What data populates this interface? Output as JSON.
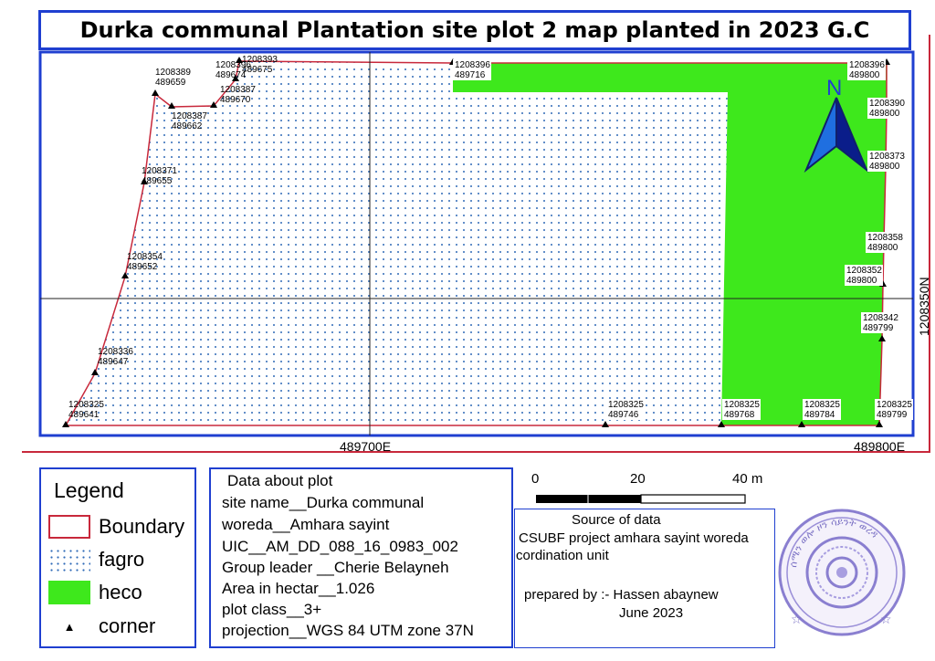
{
  "title": "Durka communal Plantation site plot 2 map planted in 2023 G.C",
  "map": {
    "colors": {
      "frame": "#1f3fd0",
      "boundary": "#c8283b",
      "fagro_dots": "#2f6ab7",
      "heco": "#3ee81c"
    },
    "north_label": "N",
    "grid_labels": {
      "x_left": "489700E",
      "x_right": "489800E",
      "y_right": "1208350N"
    },
    "corner_labels": [
      {
        "n": "1208325",
        "e": "489641"
      },
      {
        "n": "1208336",
        "e": "489647"
      },
      {
        "n": "1208354",
        "e": "489652"
      },
      {
        "n": "1208371",
        "e": "489655"
      },
      {
        "n": "1208389",
        "e": "489659"
      },
      {
        "n": "1208387",
        "e": "489662"
      },
      {
        "n": "1208396",
        "e": "489674"
      },
      {
        "n": "1208393",
        "e": "489675"
      },
      {
        "n": "1208387",
        "e": "489670"
      },
      {
        "n": "1208396",
        "e": "489716"
      },
      {
        "n": "1208396",
        "e": "489800"
      },
      {
        "n": "1208390",
        "e": "489800"
      },
      {
        "n": "1208373",
        "e": "489800"
      },
      {
        "n": "1208358",
        "e": "489800"
      },
      {
        "n": "1208352",
        "e": "489800"
      },
      {
        "n": "1208342",
        "e": "489799"
      },
      {
        "n": "1208325",
        "e": "489799"
      },
      {
        "n": "1208325",
        "e": "489784"
      },
      {
        "n": "1208325",
        "e": "489768"
      },
      {
        "n": "1208325",
        "e": "489746"
      }
    ]
  },
  "legend": {
    "title": "Legend",
    "items": [
      {
        "label": "Boundary",
        "icon": "boundary-swatch"
      },
      {
        "label": "fagro",
        "icon": "dotted-swatch"
      },
      {
        "label": "heco",
        "icon": "green-swatch"
      },
      {
        "label": "corner",
        "icon": "triangle-marker-icon"
      }
    ]
  },
  "plot_data": {
    "heading": "Data about plot",
    "lines": [
      "site name__Durka communal",
      "woreda__Amhara sayint",
      "UIC__AM_DD_088_16_0983_002",
      "Group leader __Cherie Belayneh",
      "Area in hectar__1.026",
      "plot class__3+",
      "projection__WGS 84 UTM zone 37N"
    ]
  },
  "scale_bar": {
    "labels": [
      "0",
      "20",
      "40 m"
    ]
  },
  "source": {
    "heading": "Source of data",
    "line1": "CSUBF project amhara sayint woreda",
    "line2": "cordination unit",
    "prepared": "prepared by :- Hassen abaynew",
    "date": "June 2023"
  },
  "stamp": {
    "text": "ሰሜን ወሎ ዞን ሳይንት ወረዳ"
  }
}
